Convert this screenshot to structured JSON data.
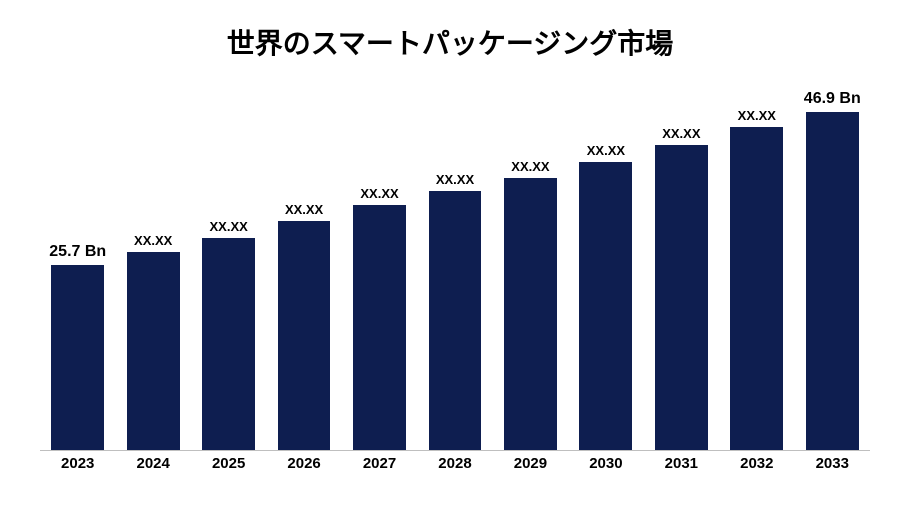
{
  "chart": {
    "type": "bar",
    "title": "世界のスマートパッケージング市場",
    "title_fontsize": 28,
    "title_color": "#000000",
    "background_color": "#ffffff",
    "bar_color": "#0e1e50",
    "bar_width_pct": 70,
    "axis_line_color": "#bfbfbf",
    "ymax": 50,
    "value_label_fontsize_first_last": 16,
    "value_label_fontsize_mid": 13,
    "x_label_fontsize": 15,
    "x_label_color": "#000000",
    "bars": [
      {
        "category": "2023",
        "value": 25.7,
        "label": "25.7 Bn",
        "emphasis": true
      },
      {
        "category": "2024",
        "value": 27.5,
        "label": "XX.XX",
        "emphasis": false
      },
      {
        "category": "2025",
        "value": 29.5,
        "label": "XX.XX",
        "emphasis": false
      },
      {
        "category": "2026",
        "value": 31.8,
        "label": "XX.XX",
        "emphasis": false
      },
      {
        "category": "2027",
        "value": 34.0,
        "label": "XX.XX",
        "emphasis": false
      },
      {
        "category": "2028",
        "value": 36.0,
        "label": "XX.XX",
        "emphasis": false
      },
      {
        "category": "2029",
        "value": 37.8,
        "label": "XX.XX",
        "emphasis": false
      },
      {
        "category": "2030",
        "value": 40.0,
        "label": "XX.XX",
        "emphasis": false
      },
      {
        "category": "2031",
        "value": 42.3,
        "label": "XX.XX",
        "emphasis": false
      },
      {
        "category": "2032",
        "value": 44.8,
        "label": "XX.XX",
        "emphasis": false
      },
      {
        "category": "2033",
        "value": 46.9,
        "label": "46.9 Bn",
        "emphasis": true
      }
    ]
  }
}
